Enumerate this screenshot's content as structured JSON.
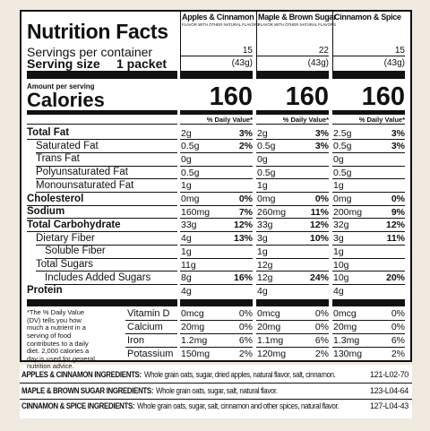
{
  "title": "Nutrition Facts",
  "servings_label": "Servings per container",
  "serving_size_label": "Serving size",
  "serving_size_value": "1 packet",
  "amount_per_serving": "Amount per serving",
  "calories_label": "Calories",
  "dv_header": "% Daily Value*",
  "products": [
    {
      "name": "Apples & Cinnamon",
      "subtitle": "FLAVOR WITH OTHER NATURAL FLAVORS",
      "servings": "15",
      "serving_grams": "(43g)",
      "calories": "160"
    },
    {
      "name": "Maple & Brown Sugar",
      "subtitle": "FLAVOR WITH OTHER NATURAL FLAVORS",
      "servings": "22",
      "serving_grams": "(43g)",
      "calories": "160"
    },
    {
      "name": "Cinnamon & Spice",
      "servings": "15",
      "serving_grams": "(43g)",
      "calories": "160"
    }
  ],
  "nutrients": [
    {
      "label": "Total Fat",
      "values": [
        [
          "2g",
          "3%"
        ],
        [
          "2g",
          "3%"
        ],
        [
          "2.5g",
          "3%"
        ]
      ]
    },
    {
      "label": "Saturated Fat",
      "values": [
        [
          "0.5g",
          "2%"
        ],
        [
          "0.5g",
          "3%"
        ],
        [
          "0.5g",
          "3%"
        ]
      ]
    },
    {
      "label": "Trans Fat",
      "values": [
        [
          "0g"
        ],
        [
          "0g"
        ],
        [
          "0g"
        ]
      ]
    },
    {
      "label": "Polyunsaturated Fat",
      "values": [
        [
          "0.5g"
        ],
        [
          "0.5g"
        ],
        [
          "0.5g"
        ]
      ]
    },
    {
      "label": "Monounsaturated Fat",
      "values": [
        [
          "1g"
        ],
        [
          "1g"
        ],
        [
          "1g"
        ]
      ]
    },
    {
      "label": "Cholesterol",
      "values": [
        [
          "0mg",
          "0%"
        ],
        [
          "0mg",
          "0%"
        ],
        [
          "0mg",
          "0%"
        ]
      ]
    },
    {
      "label": "Sodium",
      "values": [
        [
          "160mg",
          "7%"
        ],
        [
          "260mg",
          "11%"
        ],
        [
          "200mg",
          "9%"
        ]
      ]
    },
    {
      "label": "Total Carbohydrate",
      "values": [
        [
          "33g",
          "12%"
        ],
        [
          "33g",
          "12%"
        ],
        [
          "32g",
          "12%"
        ]
      ]
    },
    {
      "label": "Dietary Fiber",
      "values": [
        [
          "4g",
          "13%"
        ],
        [
          "3g",
          "10%"
        ],
        [
          "3g",
          "11%"
        ]
      ]
    },
    {
      "label": "Soluble Fiber",
      "values": [
        [
          "1g"
        ],
        [
          "1g"
        ],
        [
          "1g"
        ]
      ]
    },
    {
      "label": "Total Sugars",
      "values": [
        [
          "11g"
        ],
        [
          "12g"
        ],
        [
          "10g"
        ]
      ]
    },
    {
      "label": "Includes Added Sugars",
      "values": [
        [
          "8g",
          "16%"
        ],
        [
          "12g",
          "24%"
        ],
        [
          "10g",
          "20%"
        ]
      ]
    },
    {
      "label": "Protein",
      "values": [
        [
          "4g"
        ],
        [
          "4g"
        ],
        [
          "4g"
        ]
      ]
    }
  ],
  "footnote": "*The % Daily Value (DV) tells you how much a nutrient in a serving of food contributes to a daily diet. 2,000 calories a day is used for general nutrition advice.",
  "vitamins": [
    {
      "label": "Vitamin D",
      "values": [
        [
          "0mcg",
          "0%"
        ],
        [
          "0mcg",
          "0%"
        ],
        [
          "0mcg",
          "0%"
        ]
      ]
    },
    {
      "label": "Calcium",
      "values": [
        [
          "20mg",
          "0%"
        ],
        [
          "20mg",
          "0%"
        ],
        [
          "20mg",
          "0%"
        ]
      ]
    },
    {
      "label": "Iron",
      "values": [
        [
          "1.2mg",
          "6%"
        ],
        [
          "1.1mg",
          "6%"
        ],
        [
          "1.3mg",
          "6%"
        ]
      ]
    },
    {
      "label": "Potassium",
      "values": [
        [
          "150mg",
          "2%"
        ],
        [
          "120mg",
          "2%"
        ],
        [
          "130mg",
          "2%"
        ]
      ]
    }
  ],
  "ingredients": [
    {
      "label": "APPLES & CINNAMON INGREDIENTS:",
      "text": "Whole grain oats, sugar, dried apples, natural flavor, salt, cinnamon.",
      "code": "121-L02-70"
    },
    {
      "label": "MAPLE & BROWN SUGAR INGREDIENTS:",
      "text": "Whole grain oats, sugar, salt, natural flavor.",
      "code": "123-L04-64"
    },
    {
      "label": "CINNAMON & SPICE INGREDIENTS:",
      "text": "Whole grain oats, sugar, salt, cinnamon and other spices, natural flavor.",
      "code": "127-L04-43"
    }
  ]
}
